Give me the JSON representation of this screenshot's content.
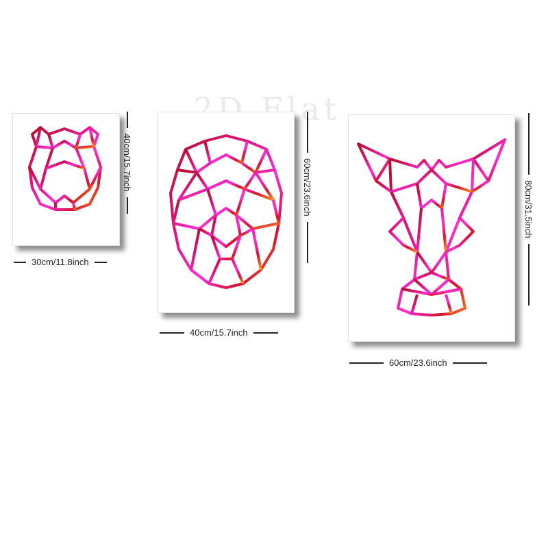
{
  "watermark": "2D Flat",
  "accent_gradient": [
    "#c8102e",
    "#e0137a",
    "#ff2bd6",
    "#ff9a1a"
  ],
  "icons": [
    "hippo-head-icon",
    "lion-head-icon",
    "warthog-head-icon"
  ],
  "panels": [
    {
      "width_label": "30cm/11.8inch",
      "height_label": "40cm/15.7inch"
    },
    {
      "width_label": "40cm/15.7inch",
      "height_label": "60cm/23.6inch"
    },
    {
      "width_label": "60cm/23.6inch",
      "height_label": "80cm/31.5inch"
    }
  ]
}
